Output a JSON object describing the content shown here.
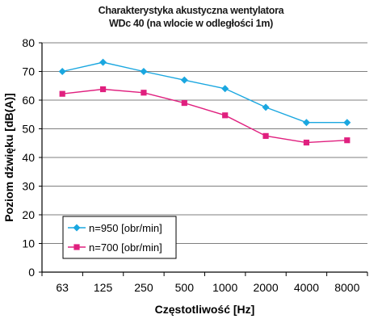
{
  "chart_data": {
    "type": "line",
    "title_lines": [
      "Charakterystyka akustyczna wentylatora",
      "WDc 40 (na wlocie w odległości 1m)"
    ],
    "xlabel": "Częstotliwość [Hz]",
    "ylabel": "Poziom dźwięku [dB(A)]",
    "categories": [
      "63",
      "125",
      "250",
      "500",
      "1000",
      "2000",
      "4000",
      "8000"
    ],
    "ylim": [
      0,
      80
    ],
    "yticks": [
      0,
      10,
      20,
      30,
      40,
      50,
      60,
      70,
      80
    ],
    "grid": "horizontal",
    "legend_position": "bottom-left",
    "series": [
      {
        "name": "n=950 [obr/min]",
        "color": "#1aa7e0",
        "marker": "diamond",
        "values": [
          70,
          73.2,
          70,
          67,
          64,
          57.5,
          52.2,
          52.2
        ]
      },
      {
        "name": "n=700 [obr/min]",
        "color": "#e0207f",
        "marker": "square",
        "values": [
          62.2,
          63.8,
          62.6,
          59,
          54.7,
          47.5,
          45.2,
          46
        ]
      }
    ]
  }
}
